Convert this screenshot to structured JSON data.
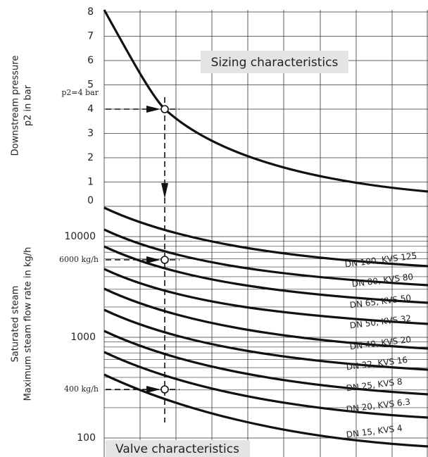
{
  "pressure_axis": {
    "label": "Downstream pressure",
    "label2": "p2 in bar",
    "ticks": [
      "8",
      "7",
      "6",
      "5",
      "4",
      "3",
      "2",
      "1",
      "0"
    ]
  },
  "flow_axis": {
    "label": "Saturated steam",
    "label2": "Maximum steam flow rate  in kg/h",
    "ticks": [
      "10000",
      "1000",
      "100"
    ]
  },
  "sizing_title": "Sizing characteristics",
  "valve_title": "Valve characteristics",
  "markers": {
    "pressure": "p2=4 bar",
    "flow_high": "6000 kg/h",
    "flow_low": "400 kg/h"
  },
  "curves": [
    "DN 100, KVS 125",
    "DN 80, KVS 80",
    "DN 65, KVS 50",
    "DN 50, KVS 32",
    "DN 40, KVS 20",
    "DN 32, KVS 16",
    "DN 25, KVS 8",
    "DN 20, KVS 6.3",
    "DN 15, KVS 4"
  ]
}
